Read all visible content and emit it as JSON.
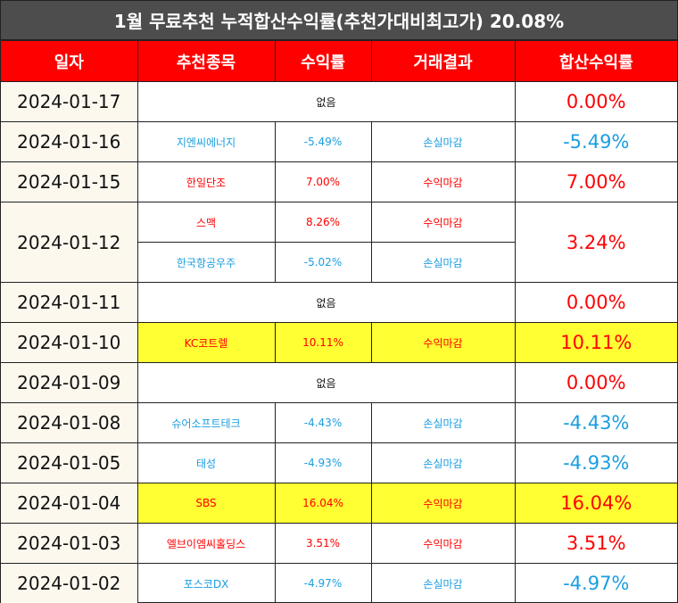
{
  "title": "1월 무료추천 누적합산수익률(추천가대비최고가) 20.08%",
  "headers": [
    "일자",
    "추천종목",
    "수익률",
    "거래결과",
    "합산수익률"
  ],
  "rows": [
    {
      "date": "2024-01-17",
      "none": "없음",
      "total": "0.00%"
    },
    {
      "date": "2024-01-16",
      "stock": "지엔씨에너지",
      "ret": "-5.49%",
      "result": "손실마감",
      "total": "-5.49%"
    },
    {
      "date": "2024-01-15",
      "stock": "한일단조",
      "ret": "7.00%",
      "result": "수익마감",
      "total": "7.00%"
    },
    {
      "date": "2024-01-12",
      "stock": "스맥",
      "ret": "8.26%",
      "result": "수익마감",
      "total": "3.24%",
      "stock2": "한국항공우주",
      "ret2": "-5.02%",
      "result2": "손실마감"
    },
    {
      "date": "2024-01-11",
      "none": "없음",
      "total": "0.00%"
    },
    {
      "date": "2024-01-10",
      "stock": "KC코트렐",
      "ret": "10.11%",
      "result": "수익마감",
      "total": "10.11%"
    },
    {
      "date": "2024-01-09",
      "none": "없음",
      "total": "0.00%"
    },
    {
      "date": "2024-01-08",
      "stock": "슈어소프트테크",
      "ret": "-4.43%",
      "result": "손실마감",
      "total": "-4.43%"
    },
    {
      "date": "2024-01-05",
      "stock": "태성",
      "ret": "-4.93%",
      "result": "손실마감",
      "total": "-4.93%"
    },
    {
      "date": "2024-01-04",
      "stock": "SBS",
      "ret": "16.04%",
      "result": "수익마감",
      "total": "16.04%"
    },
    {
      "date": "2024-01-03",
      "stock": "엘브이엠씨홀딩스",
      "ret": "3.51%",
      "result": "수익마감",
      "total": "3.51%"
    },
    {
      "date": "2024-01-02",
      "stock": "포스코DX",
      "ret": "-4.97%",
      "result": "손실마감",
      "total": "-4.97%"
    }
  ],
  "colors": {
    "positive": "#ff0000",
    "negative": "#1a9ee0",
    "highlight": "#ffff33",
    "header": "#ff0000",
    "title_bg": "#4d4d4d"
  }
}
